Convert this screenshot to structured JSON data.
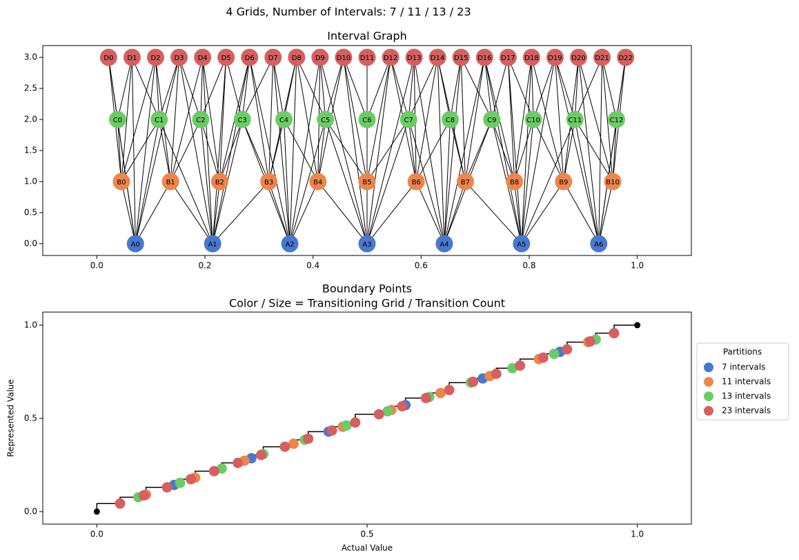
{
  "suptitle": "4 Grids, Number of Intervals: 7 / 11 / 13 / 23",
  "chart_data": [
    {
      "type": "interval-graph",
      "title": "Interval Graph",
      "xlim": [
        -0.1,
        1.1
      ],
      "ylim": [
        -0.19,
        3.19
      ],
      "xticks": [
        {
          "value": 0,
          "label": "0.0"
        },
        {
          "value": 0.2,
          "label": "0.2"
        },
        {
          "value": 0.4,
          "label": "0.4"
        },
        {
          "value": 0.6,
          "label": "0.6"
        },
        {
          "value": 0.8,
          "label": "0.8"
        },
        {
          "value": 1,
          "label": "1.0"
        }
      ],
      "yticks": [
        {
          "value": 0,
          "label": "0.0"
        },
        {
          "value": 0.5,
          "label": "0.5"
        },
        {
          "value": 1,
          "label": "1.0"
        },
        {
          "value": 1.5,
          "label": "1.5"
        },
        {
          "value": 2,
          "label": "2.0"
        },
        {
          "value": 2.5,
          "label": "2.5"
        },
        {
          "value": 3,
          "label": "3.0"
        }
      ],
      "series": [
        {
          "color": "#4878d0",
          "y": 0,
          "labels": [
            "A0",
            "A1",
            "A2",
            "A3",
            "A4",
            "A5",
            "A6"
          ],
          "x": [
            0.0714,
            0.2143,
            0.3571,
            0.5,
            0.6429,
            0.7857,
            0.9286
          ]
        },
        {
          "color": "#ee854a",
          "y": 1,
          "labels": [
            "B0",
            "B1",
            "B2",
            "B3",
            "B4",
            "B5",
            "B6",
            "B7",
            "B8",
            "B9",
            "B10"
          ],
          "x": [
            0.0455,
            0.1364,
            0.2273,
            0.3182,
            0.4091,
            0.5,
            0.5909,
            0.6818,
            0.7727,
            0.8636,
            0.9545
          ]
        },
        {
          "color": "#6acc64",
          "y": 2,
          "labels": [
            "C0",
            "C1",
            "C2",
            "C3",
            "C4",
            "C5",
            "C6",
            "C7",
            "C8",
            "C9",
            "C10",
            "C11",
            "C12"
          ],
          "x": [
            0.0385,
            0.1154,
            0.1923,
            0.2692,
            0.3462,
            0.4231,
            0.5,
            0.5769,
            0.6538,
            0.7308,
            0.8077,
            0.8846,
            0.9615
          ]
        },
        {
          "color": "#d65f5f",
          "y": 3,
          "labels": [
            "D0",
            "D1",
            "D2",
            "D3",
            "D4",
            "D5",
            "D6",
            "D7",
            "D8",
            "D9",
            "D10",
            "D11",
            "D12",
            "D13",
            "D14",
            "D15",
            "D16",
            "D17",
            "D18",
            "D19",
            "D20",
            "D21",
            "D22"
          ],
          "x": [
            0.0217,
            0.0652,
            0.1087,
            0.1522,
            0.1957,
            0.2391,
            0.2826,
            0.3261,
            0.3696,
            0.413,
            0.4565,
            0.5,
            0.5435,
            0.587,
            0.6304,
            0.6739,
            0.7174,
            0.7609,
            0.8043,
            0.8478,
            0.8913,
            0.9348,
            0.9783
          ]
        }
      ]
    },
    {
      "type": "scatter",
      "title": "Boundary Points",
      "subtitle": "Color / Size = Transitioning Grid / Transition Count",
      "x_label": "Actual Value",
      "y_label": "Represented Value",
      "xlim": [
        -0.1,
        1.1
      ],
      "ylim": [
        -0.067,
        1.07
      ],
      "xticks": [
        {
          "value": 0,
          "label": "0.0"
        },
        {
          "value": 0.5,
          "label": "0.5"
        },
        {
          "value": 1,
          "label": "1.0"
        }
      ],
      "yticks": [
        {
          "value": 0,
          "label": "0.0"
        },
        {
          "value": 0.5,
          "label": "0.5"
        },
        {
          "value": 1,
          "label": "1.0"
        }
      ],
      "legend_title": "Partitions",
      "legend": "outside right",
      "endpoints": {
        "color": "#000000",
        "x": [
          0,
          1
        ],
        "values": [
          0,
          1
        ]
      },
      "series": [
        {
          "name": "7 intervals",
          "color": "#4878d0",
          "x": [
            0.143,
            0.286,
            0.429,
            0.571,
            0.714,
            0.857
          ],
          "values": [
            0.143,
            0.286,
            0.429,
            0.571,
            0.714,
            0.857
          ]
        },
        {
          "name": "11 intervals",
          "color": "#ee854a",
          "x": [
            0.091,
            0.182,
            0.273,
            0.364,
            0.455,
            0.545,
            0.636,
            0.727,
            0.818,
            0.909
          ],
          "values": [
            0.091,
            0.182,
            0.273,
            0.364,
            0.455,
            0.545,
            0.636,
            0.727,
            0.818,
            0.909
          ]
        },
        {
          "name": "13 intervals",
          "color": "#6acc64",
          "x": [
            0.077,
            0.154,
            0.231,
            0.308,
            0.385,
            0.462,
            0.538,
            0.615,
            0.692,
            0.769,
            0.846,
            0.923
          ],
          "values": [
            0.077,
            0.154,
            0.231,
            0.308,
            0.385,
            0.462,
            0.538,
            0.615,
            0.692,
            0.769,
            0.846,
            0.923
          ]
        },
        {
          "name": "23 intervals",
          "color": "#d65f5f",
          "x": [
            0.043,
            0.087,
            0.13,
            0.174,
            0.217,
            0.261,
            0.304,
            0.348,
            0.391,
            0.435,
            0.478,
            0.522,
            0.565,
            0.609,
            0.652,
            0.696,
            0.739,
            0.783,
            0.826,
            0.87,
            0.913,
            0.957
          ],
          "values": [
            0.043,
            0.087,
            0.13,
            0.174,
            0.217,
            0.261,
            0.304,
            0.348,
            0.391,
            0.435,
            0.478,
            0.522,
            0.565,
            0.609,
            0.652,
            0.696,
            0.739,
            0.783,
            0.826,
            0.87,
            0.913,
            0.957
          ]
        }
      ]
    }
  ]
}
